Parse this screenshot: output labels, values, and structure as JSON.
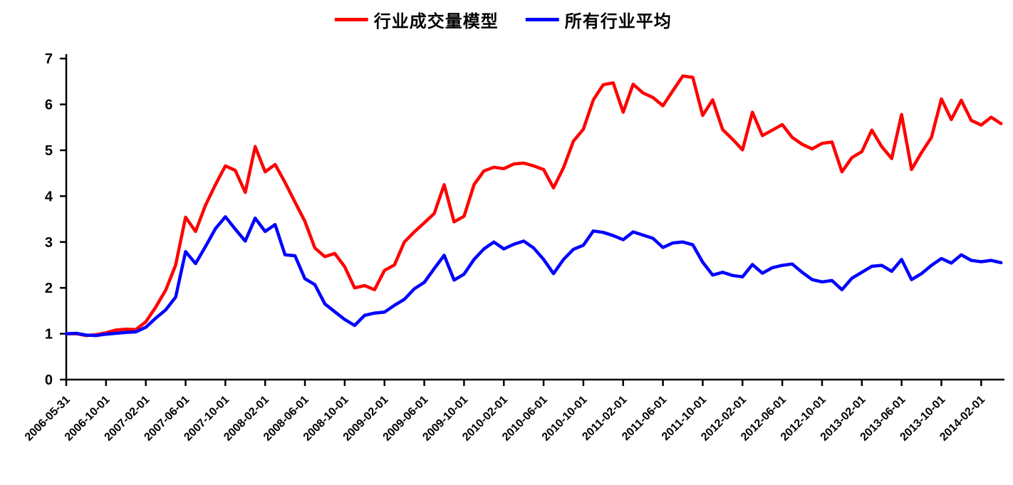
{
  "page": {
    "background": "#ffffff",
    "title": ""
  },
  "legend": {
    "items": [
      {
        "label": "行业成交量模型",
        "color": "#ff0000"
      },
      {
        "label": "所有行业平均",
        "color": "#0000ff"
      }
    ]
  },
  "chart_data": {
    "type": "line",
    "title": "",
    "xlabel": "",
    "ylabel": "",
    "grid": false,
    "legend_position": "top-center",
    "ylim": [
      0,
      7
    ],
    "yticks": [
      0,
      1,
      2,
      3,
      4,
      5,
      6,
      7
    ],
    "x_tick_interval_months": 4,
    "x_tick_labels": [
      "2006-05-31",
      "2006-10-01",
      "2007-02-01",
      "2007-06-01",
      "2007-10-01",
      "2008-02-01",
      "2008-06-01",
      "2008-10-01",
      "2009-02-01",
      "2009-06-01",
      "2009-10-01",
      "2010-02-01",
      "2010-06-01",
      "2010-10-01",
      "2011-02-01",
      "2011-06-01",
      "2011-10-01",
      "2012-02-01",
      "2012-06-01",
      "2012-10-01",
      "2013-02-01",
      "2013-06-01",
      "2013-10-01",
      "2014-02-01"
    ],
    "months": [
      "2006-06",
      "2006-07",
      "2006-08",
      "2006-09",
      "2006-10",
      "2006-11",
      "2006-12",
      "2007-01",
      "2007-02",
      "2007-03",
      "2007-04",
      "2007-05",
      "2007-06",
      "2007-07",
      "2007-08",
      "2007-09",
      "2007-10",
      "2007-11",
      "2007-12",
      "2008-01",
      "2008-02",
      "2008-03",
      "2008-04",
      "2008-05",
      "2008-06",
      "2008-07",
      "2008-08",
      "2008-09",
      "2008-10",
      "2008-11",
      "2008-12",
      "2009-01",
      "2009-02",
      "2009-03",
      "2009-04",
      "2009-05",
      "2009-06",
      "2009-07",
      "2009-08",
      "2009-09",
      "2009-10",
      "2009-11",
      "2009-12",
      "2010-01",
      "2010-02",
      "2010-03",
      "2010-04",
      "2010-05",
      "2010-06",
      "2010-07",
      "2010-08",
      "2010-09",
      "2010-10",
      "2010-11",
      "2010-12",
      "2011-01",
      "2011-02",
      "2011-03",
      "2011-04",
      "2011-05",
      "2011-06",
      "2011-07",
      "2011-08",
      "2011-09",
      "2011-10",
      "2011-11",
      "2011-12",
      "2012-01",
      "2012-02",
      "2012-03",
      "2012-04",
      "2012-05",
      "2012-06",
      "2012-07",
      "2012-08",
      "2012-09",
      "2012-10",
      "2012-11",
      "2012-12",
      "2013-01",
      "2013-02",
      "2013-03",
      "2013-04",
      "2013-05",
      "2013-06",
      "2013-07",
      "2013-08",
      "2013-09",
      "2013-10",
      "2013-11",
      "2013-12",
      "2014-01",
      "2014-02",
      "2014-03",
      "2014-04"
    ],
    "series": [
      {
        "name": "行业成交量模型",
        "color": "#ff0000",
        "line_width": 4.5,
        "values": [
          1.0,
          1.0,
          0.96,
          0.98,
          1.02,
          1.08,
          1.1,
          1.09,
          1.26,
          1.58,
          1.95,
          2.5,
          3.54,
          3.23,
          3.8,
          4.25,
          4.66,
          4.56,
          4.08,
          5.08,
          4.53,
          4.69,
          4.3,
          3.87,
          3.45,
          2.87,
          2.68,
          2.75,
          2.46,
          2.0,
          2.05,
          1.96,
          2.38,
          2.5,
          3.0,
          3.22,
          3.42,
          3.62,
          4.25,
          3.44,
          3.56,
          4.25,
          4.55,
          4.63,
          4.6,
          4.7,
          4.72,
          4.66,
          4.58,
          4.18,
          4.62,
          5.2,
          5.46,
          6.1,
          6.43,
          6.47,
          5.83,
          6.44,
          6.25,
          6.15,
          5.97,
          6.3,
          6.62,
          6.59,
          5.76,
          6.1,
          5.45,
          5.24,
          5.01,
          5.83,
          5.32,
          5.44,
          5.56,
          5.28,
          5.13,
          5.03,
          5.15,
          5.18,
          4.53,
          4.84,
          4.97,
          5.44,
          5.08,
          4.82,
          5.78,
          4.58,
          4.95,
          5.28,
          6.12,
          5.67,
          6.09,
          5.65,
          5.55,
          5.72,
          5.58
        ]
      },
      {
        "name": "所有行业平均",
        "color": "#0000ff",
        "line_width": 4.5,
        "values": [
          1.0,
          1.01,
          0.97,
          0.96,
          0.99,
          1.01,
          1.03,
          1.04,
          1.14,
          1.34,
          1.52,
          1.8,
          2.79,
          2.53,
          2.9,
          3.29,
          3.55,
          3.28,
          3.02,
          3.52,
          3.23,
          3.38,
          2.72,
          2.7,
          2.2,
          2.07,
          1.65,
          1.48,
          1.31,
          1.18,
          1.4,
          1.45,
          1.47,
          1.62,
          1.75,
          1.98,
          2.12,
          2.42,
          2.71,
          2.17,
          2.3,
          2.62,
          2.85,
          3.0,
          2.85,
          2.95,
          3.02,
          2.87,
          2.62,
          2.31,
          2.62,
          2.84,
          2.93,
          3.24,
          3.21,
          3.14,
          3.05,
          3.22,
          3.15,
          3.08,
          2.88,
          2.98,
          3.0,
          2.94,
          2.56,
          2.28,
          2.34,
          2.27,
          2.24,
          2.51,
          2.32,
          2.44,
          2.49,
          2.52,
          2.34,
          2.18,
          2.13,
          2.16,
          1.96,
          2.21,
          2.34,
          2.47,
          2.49,
          2.36,
          2.62,
          2.18,
          2.31,
          2.49,
          2.64,
          2.54,
          2.72,
          2.6,
          2.57,
          2.6,
          2.55
        ]
      }
    ],
    "axis_color": "#000000"
  }
}
